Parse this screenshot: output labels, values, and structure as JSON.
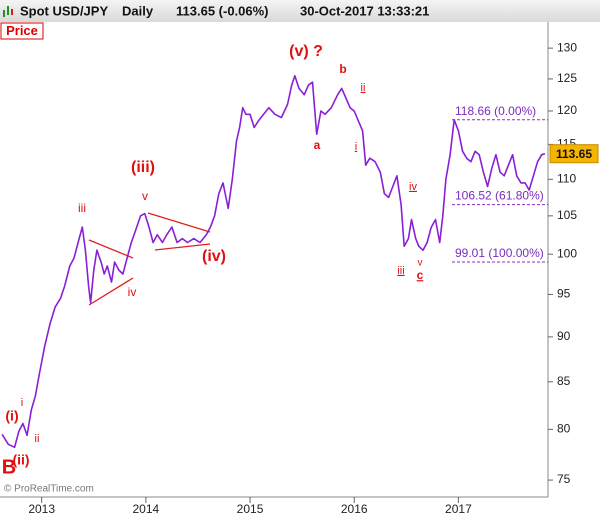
{
  "chart_data": {
    "type": "line",
    "title": "Spot USD/JPY",
    "timeframe": "Daily",
    "quote": "113.65 (-0.06%)",
    "timestamp": "30-Oct-2017 13:33:21",
    "panel_label": "Price",
    "watermark": "© ProRealTime.com",
    "log_scale": true,
    "x": [
      2012.62,
      2012.68,
      2012.74,
      2012.78,
      2012.82,
      2012.86,
      2012.9,
      2012.94,
      2012.98,
      2013.03,
      2013.08,
      2013.13,
      2013.18,
      2013.22,
      2013.27,
      2013.31,
      2013.35,
      2013.39,
      2013.42,
      2013.45,
      2013.47,
      2013.5,
      2013.53,
      2013.57,
      2013.6,
      2013.63,
      2013.67,
      2013.7,
      2013.74,
      2013.78,
      2013.82,
      2013.86,
      2013.9,
      2013.95,
      2013.99,
      2014.03,
      2014.07,
      2014.11,
      2014.16,
      2014.2,
      2014.25,
      2014.3,
      2014.35,
      2014.4,
      2014.46,
      2014.52,
      2014.58,
      2014.62,
      2014.66,
      2014.7,
      2014.74,
      2014.79,
      2014.83,
      2014.87,
      2014.9,
      2014.93,
      2014.96,
      2015.0,
      2015.04,
      2015.08,
      2015.13,
      2015.18,
      2015.24,
      2015.3,
      2015.36,
      2015.4,
      2015.43,
      2015.47,
      2015.52,
      2015.56,
      2015.6,
      2015.64,
      2015.68,
      2015.72,
      2015.78,
      2015.84,
      2015.88,
      2015.92,
      2015.96,
      2016.0,
      2016.04,
      2016.08,
      2016.11,
      2016.15,
      2016.2,
      2016.25,
      2016.29,
      2016.33,
      2016.37,
      2016.41,
      2016.45,
      2016.48,
      2016.52,
      2016.55,
      2016.59,
      2016.62,
      2016.66,
      2016.7,
      2016.74,
      2016.78,
      2016.82,
      2016.85,
      2016.88,
      2016.92,
      2016.96,
      2017.0,
      2017.04,
      2017.08,
      2017.12,
      2017.16,
      2017.2,
      2017.24,
      2017.28,
      2017.32,
      2017.36,
      2017.4,
      2017.44,
      2017.48,
      2017.52,
      2017.56,
      2017.6,
      2017.64,
      2017.68,
      2017.72,
      2017.76,
      2017.8,
      2017.83
    ],
    "series": [
      {
        "name": "USD/JPY",
        "color": "#8a1fd6",
        "values": [
          79.5,
          78.5,
          78.2,
          79.8,
          80.6,
          79.4,
          82,
          83.5,
          86,
          89,
          91.5,
          93.5,
          94.5,
          96,
          98.5,
          99.5,
          101.5,
          103.5,
          100.5,
          96,
          94,
          98,
          100.5,
          99,
          97.5,
          98.5,
          96.5,
          99,
          98,
          97.5,
          99.5,
          101.5,
          103,
          105,
          105.3,
          103.5,
          101.5,
          102.5,
          101.5,
          102.5,
          103.5,
          101.5,
          102,
          101.5,
          102,
          101.5,
          102.5,
          103.5,
          105,
          108,
          109.5,
          106,
          110,
          115.5,
          117.5,
          120.5,
          119.5,
          119.5,
          117.5,
          118.5,
          119.5,
          120.5,
          119.5,
          119,
          121,
          124,
          125.5,
          123.5,
          122.5,
          124,
          124.5,
          116.5,
          120,
          119.5,
          120.5,
          122.5,
          123.5,
          122,
          120.5,
          120,
          118.5,
          117,
          112,
          113,
          112.5,
          111,
          108,
          107.5,
          109,
          110.5,
          106.5,
          101,
          102,
          104.5,
          102,
          101,
          100.5,
          101.5,
          103.5,
          104.5,
          101.5,
          105,
          110,
          113.5,
          118.66,
          117,
          114,
          113,
          112.5,
          114,
          113.5,
          111,
          109,
          111.5,
          113.5,
          111,
          110.5,
          112,
          113.5,
          110.5,
          109.5,
          109.5,
          108.5,
          110.5,
          112.5,
          113.5,
          113.65
        ]
      }
    ],
    "xlim": [
      2012.6,
      2017.86
    ],
    "xticks": [
      2013,
      2014,
      2015,
      2016,
      2017
    ],
    "ylim": [
      73.4,
      134.4
    ],
    "yticks": [
      75,
      80,
      85,
      90,
      95,
      100,
      105,
      110,
      115,
      120,
      125,
      130
    ],
    "levels": [
      {
        "value": 118.66,
        "label": "118.66 (0.00%)"
      },
      {
        "value": 106.52,
        "label": "106.52 (61.80%)"
      },
      {
        "value": 99.01,
        "label": "99.01 (100.00%)"
      }
    ],
    "annotations": [
      "B",
      "(ii)",
      "(i)",
      "i",
      "ii",
      "iii",
      "iv",
      "v",
      "(iii)",
      "(iv)",
      "(v) ?",
      "a",
      "b",
      "ii",
      "i",
      "iv",
      "iii",
      "v",
      "c"
    ]
  }
}
